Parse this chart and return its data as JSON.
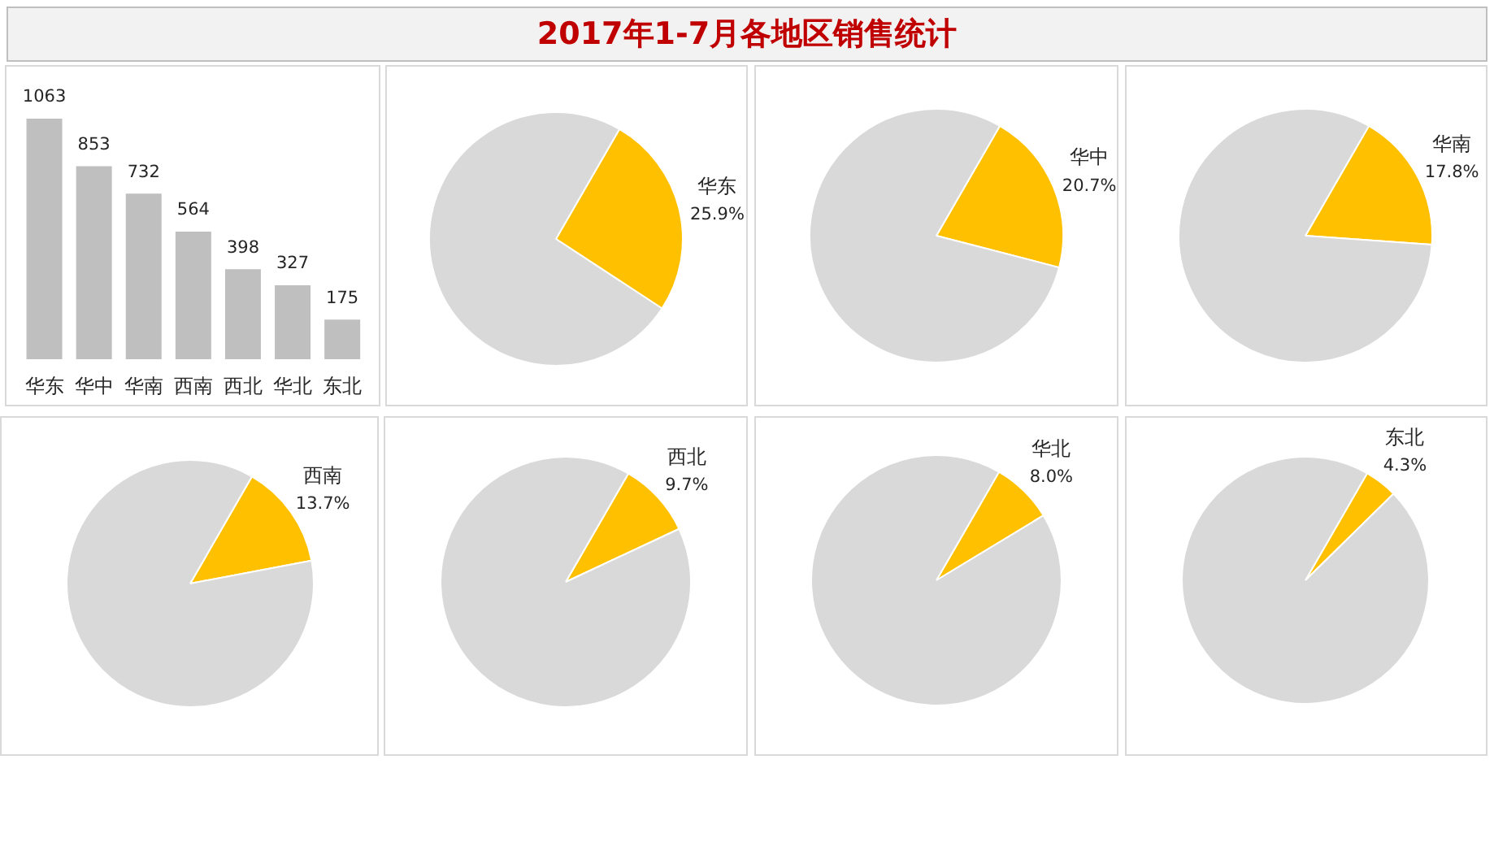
{
  "chart_data": [
    {
      "type": "other",
      "title": "2017年1-7月各地区销售统计"
    },
    {
      "type": "bar",
      "categories": [
        "华东",
        "华中",
        "华南",
        "西南",
        "西北",
        "华北",
        "东北"
      ],
      "values": [
        1063,
        853,
        732,
        564,
        398,
        327,
        175
      ],
      "color": "#bfbfbf",
      "data_labels": true
    },
    {
      "type": "pie",
      "categories": [
        "华东",
        null
      ],
      "values": [
        25.9,
        74.1
      ],
      "colors": [
        "#ffc000",
        "#d9d9d9"
      ],
      "value_labels": [
        "25.9%",
        null
      ]
    },
    {
      "type": "pie",
      "categories": [
        "华中",
        null
      ],
      "values": [
        20.7,
        79.3
      ],
      "colors": [
        "#ffc000",
        "#d9d9d9"
      ],
      "value_labels": [
        "20.7%",
        null
      ]
    },
    {
      "type": "pie",
      "categories": [
        "华南",
        null
      ],
      "values": [
        17.8,
        82.2
      ],
      "colors": [
        "#ffc000",
        "#d9d9d9"
      ],
      "value_labels": [
        "17.8%",
        null
      ]
    },
    {
      "type": "pie",
      "categories": [
        "西南",
        null
      ],
      "values": [
        13.7,
        86.3
      ],
      "colors": [
        "#ffc000",
        "#d9d9d9"
      ],
      "value_labels": [
        "13.7%",
        null
      ]
    },
    {
      "type": "pie",
      "categories": [
        "西北",
        null
      ],
      "values": [
        9.7,
        90.3
      ],
      "colors": [
        "#ffc000",
        "#d9d9d9"
      ],
      "value_labels": [
        "9.7%",
        null
      ]
    },
    {
      "type": "pie",
      "categories": [
        "华北",
        null
      ],
      "values": [
        8.0,
        92.0
      ],
      "colors": [
        "#ffc000",
        "#d9d9d9"
      ],
      "value_labels": [
        "8.0%",
        null
      ]
    },
    {
      "type": "pie",
      "categories": [
        "东北",
        null
      ],
      "values": [
        4.3,
        95.7
      ],
      "colors": [
        "#ffc000",
        "#d9d9d9"
      ],
      "value_labels": [
        "4.3%",
        null
      ]
    }
  ]
}
